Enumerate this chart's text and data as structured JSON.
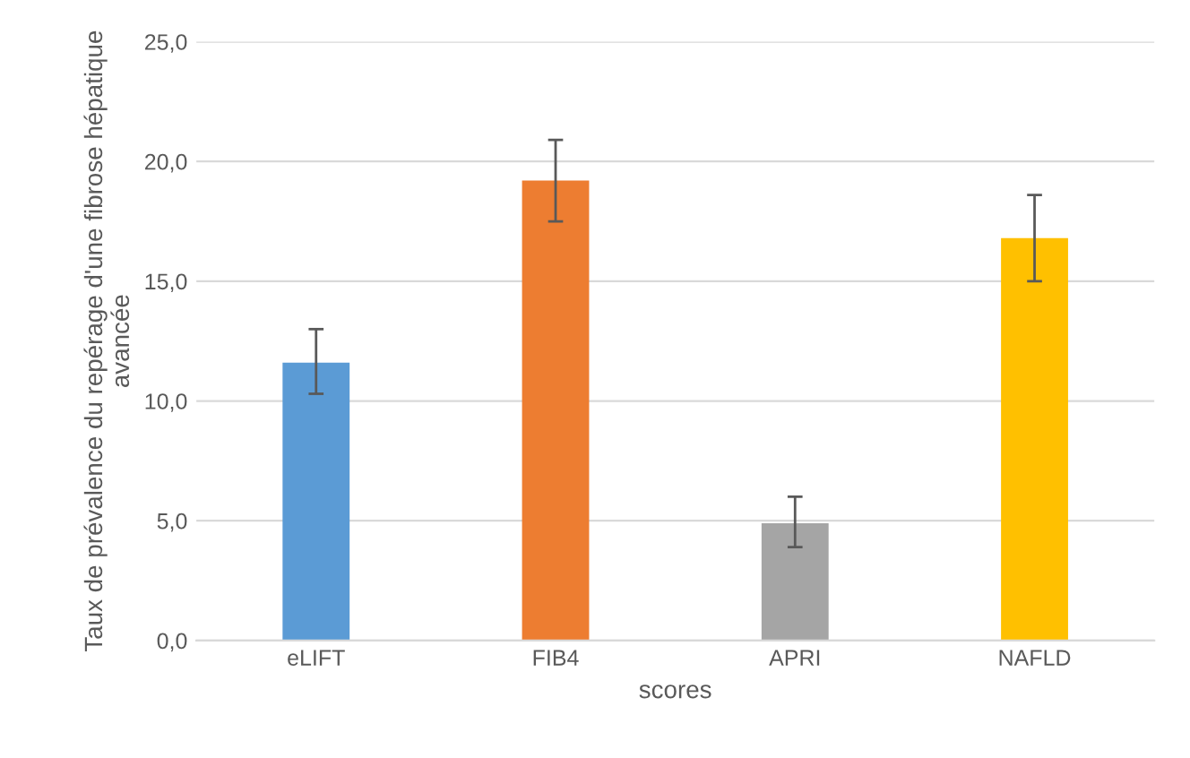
{
  "chart_data": {
    "type": "bar",
    "xlabel": "scores",
    "ylabel": "Taux de prévalence du repérage d'une fibrose hépatique avancée",
    "categories": [
      "eLIFT",
      "FIB4",
      "APRI",
      "NAFLD"
    ],
    "values": [
      11.6,
      19.2,
      4.9,
      16.8
    ],
    "colors": [
      "#5b9bd5",
      "#ed7d31",
      "#a5a5a5",
      "#ffc000"
    ],
    "errors": [
      [
        10.3,
        13.0
      ],
      [
        17.5,
        20.9
      ],
      [
        3.9,
        6.0
      ],
      [
        15.0,
        18.6
      ]
    ],
    "ylim": [
      0,
      25
    ],
    "yticks": [
      {
        "value": 0,
        "label": "0,0"
      },
      {
        "value": 5,
        "label": "5,0"
      },
      {
        "value": 10,
        "label": "10,0"
      },
      {
        "value": 15,
        "label": "15,0"
      },
      {
        "value": 20,
        "label": "20,0"
      },
      {
        "value": 25,
        "label": "25,0"
      }
    ],
    "grid": "y",
    "legend": false
  }
}
